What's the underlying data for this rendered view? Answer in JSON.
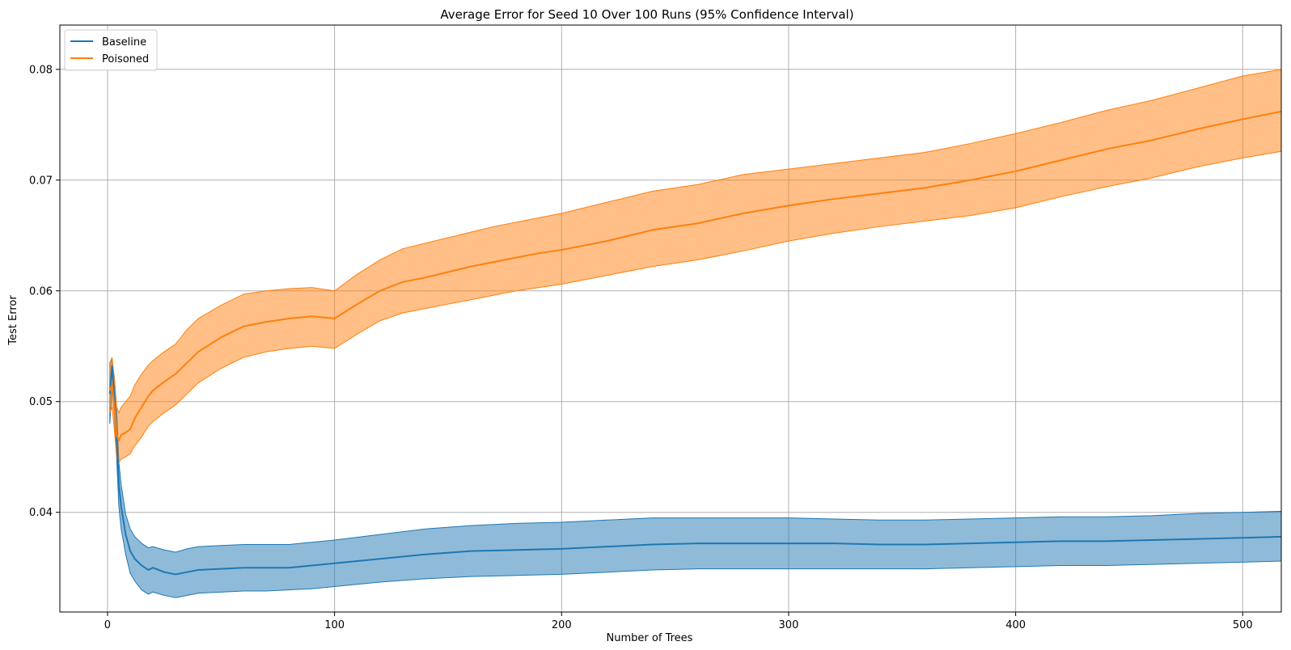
{
  "chart_data": {
    "type": "line",
    "title": "Average Error for Seed 10 Over 100 Runs (95% Confidence Interval)",
    "xlabel": "Number of Trees",
    "ylabel": "Test Error",
    "xlim": [
      -21,
      517
    ],
    "ylim": [
      0.031,
      0.084
    ],
    "xticks": [
      0,
      100,
      200,
      300,
      400,
      500
    ],
    "yticks": [
      0.04,
      0.05,
      0.06,
      0.07,
      0.08
    ],
    "ytick_labels": [
      "0.04",
      "0.05",
      "0.06",
      "0.07",
      "0.08"
    ],
    "grid": true,
    "legend": "top-left",
    "series": [
      {
        "name": "Baseline",
        "color": "#1f77b4",
        "band_color": "#1f77b4",
        "x": [
          1,
          2,
          3,
          4,
          5,
          6,
          8,
          10,
          12,
          15,
          18,
          20,
          25,
          30,
          35,
          40,
          50,
          60,
          70,
          80,
          90,
          100,
          120,
          140,
          160,
          180,
          200,
          220,
          240,
          260,
          280,
          300,
          320,
          340,
          360,
          380,
          400,
          420,
          440,
          460,
          480,
          500,
          517
        ],
        "y": [
          0.0507,
          0.0532,
          0.0505,
          0.047,
          0.0425,
          0.0405,
          0.038,
          0.0365,
          0.0358,
          0.0352,
          0.0348,
          0.035,
          0.0346,
          0.0344,
          0.0346,
          0.0348,
          0.0349,
          0.035,
          0.035,
          0.035,
          0.0352,
          0.0354,
          0.0358,
          0.0362,
          0.0365,
          0.0366,
          0.0367,
          0.0369,
          0.0371,
          0.0372,
          0.0372,
          0.0372,
          0.0372,
          0.0371,
          0.0371,
          0.0372,
          0.0373,
          0.0374,
          0.0374,
          0.0375,
          0.0376,
          0.0377,
          0.0378
        ],
        "upper": [
          0.0535,
          0.0538,
          0.0522,
          0.0495,
          0.0445,
          0.0425,
          0.0398,
          0.0385,
          0.0378,
          0.0372,
          0.0368,
          0.0369,
          0.0366,
          0.0364,
          0.0367,
          0.0369,
          0.037,
          0.0371,
          0.0371,
          0.0371,
          0.0373,
          0.0375,
          0.038,
          0.0385,
          0.0388,
          0.039,
          0.0391,
          0.0393,
          0.0395,
          0.0395,
          0.0395,
          0.0395,
          0.0394,
          0.0393,
          0.0393,
          0.0394,
          0.0395,
          0.0396,
          0.0396,
          0.0397,
          0.0399,
          0.04,
          0.0401
        ],
        "lower": [
          0.048,
          0.0512,
          0.0488,
          0.045,
          0.0405,
          0.0385,
          0.0362,
          0.0345,
          0.0338,
          0.033,
          0.0326,
          0.0328,
          0.0325,
          0.0323,
          0.0325,
          0.0327,
          0.0328,
          0.0329,
          0.0329,
          0.033,
          0.0331,
          0.0333,
          0.0337,
          0.034,
          0.0342,
          0.0343,
          0.0344,
          0.0346,
          0.0348,
          0.0349,
          0.0349,
          0.0349,
          0.0349,
          0.0349,
          0.0349,
          0.035,
          0.0351,
          0.0352,
          0.0352,
          0.0353,
          0.0354,
          0.0355,
          0.0356
        ]
      },
      {
        "name": "Poisoned",
        "color": "#ff7f0e",
        "band_color": "#ff7f0e",
        "x": [
          1,
          2,
          3,
          4,
          5,
          6,
          8,
          10,
          12,
          15,
          18,
          20,
          25,
          30,
          35,
          40,
          50,
          60,
          70,
          80,
          90,
          100,
          110,
          120,
          130,
          140,
          150,
          160,
          170,
          180,
          190,
          200,
          220,
          240,
          260,
          280,
          300,
          320,
          340,
          360,
          380,
          400,
          420,
          440,
          460,
          480,
          500,
          517
        ],
        "y": [
          0.051,
          0.0515,
          0.0495,
          0.047,
          0.0465,
          0.047,
          0.0472,
          0.0475,
          0.0485,
          0.0495,
          0.0505,
          0.051,
          0.0518,
          0.0525,
          0.0535,
          0.0545,
          0.0558,
          0.0568,
          0.0572,
          0.0575,
          0.0577,
          0.0575,
          0.0588,
          0.06,
          0.0608,
          0.0612,
          0.0617,
          0.0622,
          0.0626,
          0.063,
          0.0634,
          0.0637,
          0.0645,
          0.0655,
          0.0661,
          0.067,
          0.0677,
          0.0683,
          0.0688,
          0.0693,
          0.07,
          0.0708,
          0.0718,
          0.0728,
          0.0736,
          0.0746,
          0.0755,
          0.0762
        ],
        "upper": [
          0.0535,
          0.054,
          0.052,
          0.0495,
          0.049,
          0.0495,
          0.05,
          0.0505,
          0.0515,
          0.0525,
          0.0533,
          0.0537,
          0.0545,
          0.0552,
          0.0565,
          0.0575,
          0.0587,
          0.0597,
          0.06,
          0.0602,
          0.0603,
          0.06,
          0.0615,
          0.0628,
          0.0638,
          0.0643,
          0.0648,
          0.0653,
          0.0658,
          0.0662,
          0.0666,
          0.067,
          0.068,
          0.069,
          0.0696,
          0.0705,
          0.071,
          0.0715,
          0.072,
          0.0725,
          0.0733,
          0.0742,
          0.0752,
          0.0763,
          0.0772,
          0.0783,
          0.0794,
          0.08
        ],
        "lower": [
          0.049,
          0.0495,
          0.0475,
          0.045,
          0.0445,
          0.0448,
          0.045,
          0.0453,
          0.046,
          0.0468,
          0.0478,
          0.0482,
          0.049,
          0.0497,
          0.0507,
          0.0517,
          0.053,
          0.054,
          0.0545,
          0.0548,
          0.055,
          0.0548,
          0.0561,
          0.0573,
          0.058,
          0.0584,
          0.0588,
          0.0592,
          0.0596,
          0.06,
          0.0603,
          0.0606,
          0.0614,
          0.0622,
          0.0628,
          0.0636,
          0.0645,
          0.0652,
          0.0658,
          0.0663,
          0.0668,
          0.0675,
          0.0685,
          0.0694,
          0.0702,
          0.0712,
          0.072,
          0.0726
        ]
      }
    ]
  }
}
